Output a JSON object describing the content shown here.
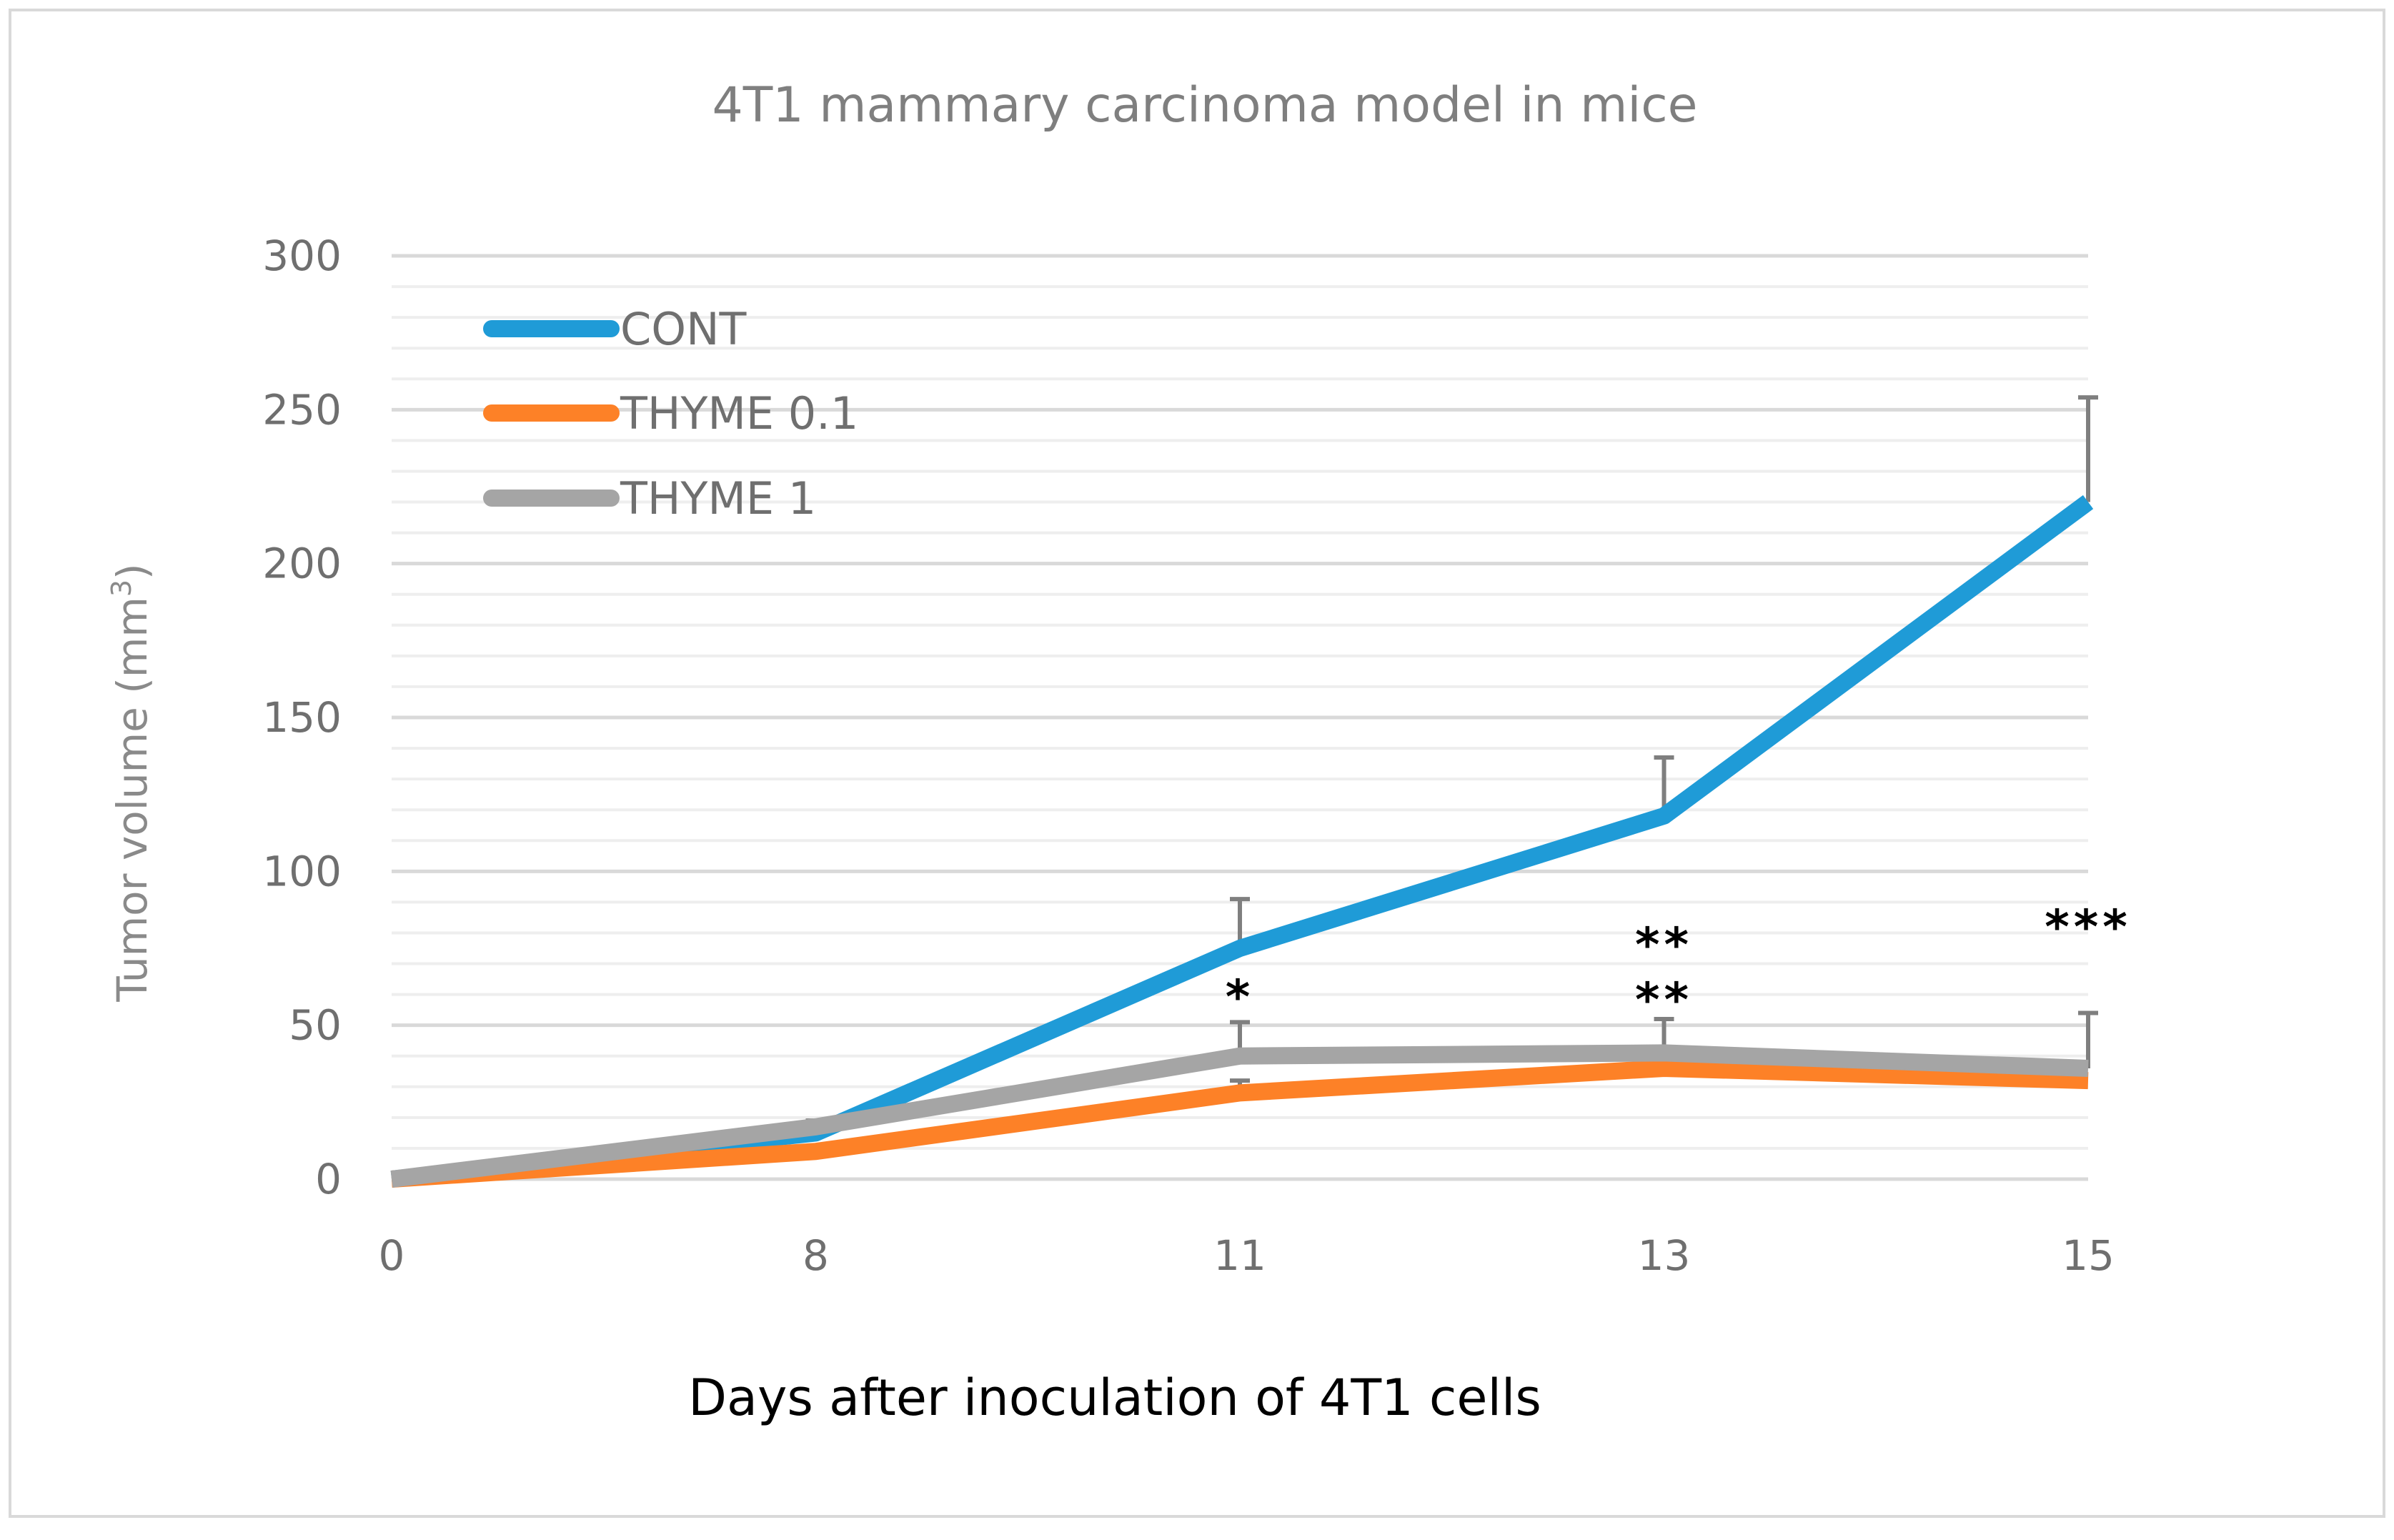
{
  "chart_data": {
    "type": "line",
    "title": "4T1 mammary carcinoma model in mice",
    "xlabel": "Days after inoculation of 4T1 cells",
    "ylabel": "Tumor volume (mm3)",
    "ylabel_base": "Tumor volume (mm",
    "ylabel_sup": "3",
    "ylabel_end": ")",
    "categories": [
      "0",
      "8",
      "11",
      "13",
      "15"
    ],
    "ylim": [
      0,
      300
    ],
    "yticks": [
      0,
      50,
      100,
      150,
      200,
      250,
      300
    ],
    "minor_step": 10,
    "series": [
      {
        "name": "CONT",
        "color": "#1f9bd7",
        "values": [
          0,
          15,
          75,
          118,
          220
        ],
        "errors": [
          0,
          0,
          16,
          19,
          34
        ]
      },
      {
        "name": "THYME 0.1",
        "color": "#fd8127",
        "values": [
          0,
          9,
          28,
          36,
          32
        ],
        "errors": [
          0,
          0,
          4,
          0,
          0
        ]
      },
      {
        "name": "THYME 1",
        "color": "#a5a5a5",
        "values": [
          0,
          17,
          40,
          41,
          36
        ],
        "errors": [
          0,
          2,
          11,
          11,
          18
        ]
      }
    ],
    "annotations": [
      {
        "category": "11",
        "lines": [
          "*"
        ]
      },
      {
        "category": "13",
        "lines": [
          "**",
          "**"
        ]
      },
      {
        "category": "15",
        "lines": [
          "***"
        ]
      }
    ],
    "legend_position": "top-left"
  }
}
